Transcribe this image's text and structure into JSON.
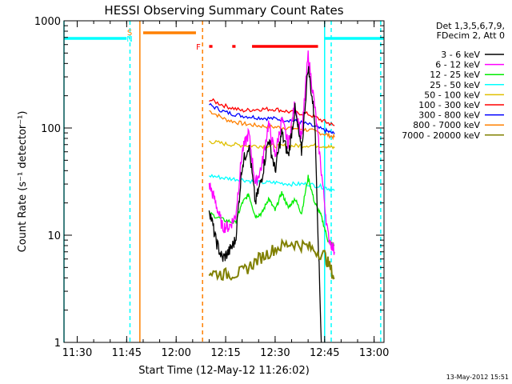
{
  "chart_data": {
    "type": "line",
    "title": "HESSI Observing Summary Count Rates",
    "xlabel": "Start Time (12-May-12 11:26:02)",
    "ylabel": "Count Rate (s⁻¹ detector⁻¹)",
    "yscale": "log",
    "ylim": [
      1,
      1000
    ],
    "xlim": [
      "11:26",
      "13:03"
    ],
    "x_ticks": [
      "11:30",
      "11:45",
      "12:00",
      "12:15",
      "12:30",
      "12:45",
      "13:00"
    ],
    "y_ticks": [
      "1",
      "10",
      "100",
      "1000"
    ],
    "legend_header": [
      "Det 1,3,5,6,7,9,",
      "FDecim 2, Att 0"
    ],
    "legend_position": "right",
    "timestamp": "13-May-2012 15:51",
    "series": [
      {
        "name": "3 - 6 keV",
        "color": "#000000",
        "x": [
          "12:10",
          "12:12",
          "12:14",
          "12:16",
          "12:18",
          "12:20",
          "12:22",
          "12:24",
          "12:26",
          "12:28",
          "12:30",
          "12:32",
          "12:34",
          "12:36",
          "12:38",
          "12:40",
          "12:42",
          "12:44"
        ],
        "values": [
          18,
          9,
          6,
          7,
          9,
          45,
          70,
          20,
          35,
          80,
          40,
          90,
          55,
          150,
          60,
          380,
          120,
          1
        ]
      },
      {
        "name": "6 - 12 keV",
        "color": "#ff00ff",
        "x": [
          "12:10",
          "12:12",
          "12:14",
          "12:16",
          "12:18",
          "12:20",
          "12:22",
          "12:24",
          "12:26",
          "12:28",
          "12:30",
          "12:32",
          "12:34",
          "12:36",
          "12:38",
          "12:40",
          "12:42",
          "12:44",
          "12:46",
          "12:48"
        ],
        "values": [
          30,
          20,
          12,
          12,
          15,
          60,
          90,
          30,
          45,
          110,
          55,
          120,
          70,
          170,
          80,
          480,
          160,
          40,
          10,
          7
        ]
      },
      {
        "name": "12 - 25 keV",
        "color": "#00ee00",
        "x": [
          "12:10",
          "12:14",
          "12:18",
          "12:20",
          "12:22",
          "12:24",
          "12:26",
          "12:28",
          "12:30",
          "12:32",
          "12:34",
          "12:36",
          "12:38",
          "12:40",
          "12:42",
          "12:44",
          "12:46",
          "12:48"
        ],
        "values": [
          16,
          14,
          13,
          20,
          24,
          15,
          16,
          22,
          17,
          25,
          18,
          22,
          16,
          35,
          20,
          15,
          9,
          8
        ]
      },
      {
        "name": "25 - 50 keV",
        "color": "#00ffff",
        "x": [
          "12:10",
          "12:15",
          "12:20",
          "12:25",
          "12:30",
          "12:35",
          "12:40",
          "12:45",
          "12:48"
        ],
        "values": [
          36,
          34,
          33,
          31,
          31,
          30,
          30,
          28,
          26
        ]
      },
      {
        "name": "50 - 100 keV",
        "color": "#e0c000",
        "x": [
          "12:10",
          "12:15",
          "12:20",
          "12:25",
          "12:30",
          "12:35",
          "12:40",
          "12:45",
          "12:48"
        ],
        "values": [
          75,
          71,
          69,
          68,
          68,
          68,
          69,
          68,
          65
        ]
      },
      {
        "name": "100 - 300 keV",
        "color": "#ff0000",
        "x": [
          "12:10",
          "12:15",
          "12:20",
          "12:25",
          "12:30",
          "12:35",
          "12:40",
          "12:45",
          "12:48"
        ],
        "values": [
          185,
          160,
          145,
          150,
          150,
          140,
          135,
          115,
          105
        ]
      },
      {
        "name": "300 - 800 keV",
        "color": "#0000ff",
        "x": [
          "12:10",
          "12:15",
          "12:20",
          "12:25",
          "12:30",
          "12:35",
          "12:40",
          "12:45",
          "12:48"
        ],
        "values": [
          165,
          140,
          130,
          125,
          122,
          118,
          108,
          95,
          88
        ]
      },
      {
        "name": "800 - 7000 keV",
        "color": "#ff8000",
        "x": [
          "12:10",
          "12:15",
          "12:20",
          "12:25",
          "12:30",
          "12:35",
          "12:40",
          "12:45",
          "12:48"
        ],
        "values": [
          145,
          120,
          110,
          105,
          102,
          100,
          96,
          88,
          82
        ]
      },
      {
        "name": "7000 - 20000 keV",
        "color": "#808000",
        "x": [
          "12:10",
          "12:15",
          "12:20",
          "12:25",
          "12:30",
          "12:35",
          "12:40",
          "12:45",
          "12:48"
        ],
        "values": [
          4.5,
          4.3,
          4.5,
          6,
          7.5,
          8.5,
          7.8,
          6.5,
          4
        ]
      }
    ],
    "markers": [
      {
        "label": "",
        "color": "#00ffff",
        "style": "solid",
        "time": "11:26"
      },
      {
        "label": "",
        "color": "#00ffff",
        "style": "dashed",
        "time": "11:46"
      },
      {
        "label": "",
        "color": "#ff8000",
        "style": "solid",
        "time": "11:49"
      },
      {
        "label": "",
        "color": "#ff8000",
        "style": "dashed",
        "time": "12:08"
      },
      {
        "label": "",
        "color": "#00ffff",
        "style": "solid",
        "time": "12:45"
      },
      {
        "label": "",
        "color": "#00ffff",
        "style": "dashed",
        "time": "12:47"
      },
      {
        "label": "",
        "color": "#00ffff",
        "style": "dashed",
        "time": "13:02"
      }
    ],
    "flag_labels": [
      {
        "text": "S",
        "color": "#ff8000"
      },
      {
        "text": "N",
        "color": "#00ffff"
      },
      {
        "text": "F",
        "color": "#ff0000"
      }
    ],
    "flag_bars": [
      {
        "color": "#00ffff",
        "start": "11:26",
        "end": "11:45"
      },
      {
        "color": "#ff8000",
        "start": "11:50",
        "end": "12:06"
      },
      {
        "color": "#ff0000",
        "start": "12:10",
        "end": "12:11"
      },
      {
        "color": "#ff0000",
        "start": "12:17",
        "end": "12:18"
      },
      {
        "color": "#ff0000",
        "start": "12:23",
        "end": "12:43"
      },
      {
        "color": "#00ffff",
        "start": "12:45",
        "end": "13:03"
      }
    ]
  }
}
